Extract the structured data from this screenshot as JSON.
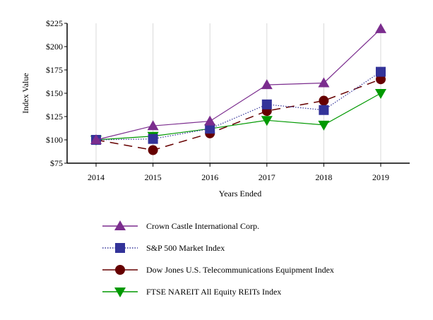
{
  "chart_data": {
    "type": "line",
    "xlabel": "Years Ended",
    "ylabel": "Index Value",
    "categories": [
      "2014",
      "2015",
      "2016",
      "2017",
      "2018",
      "2019"
    ],
    "ylim": [
      75,
      225
    ],
    "yticks": [
      "$75",
      "$100",
      "$125",
      "$150",
      "$175",
      "$200",
      "$225"
    ],
    "grid": "vertical",
    "legend_position": "bottom",
    "series": [
      {
        "name": "Crown Castle International Corp.",
        "values": [
          100,
          115,
          120,
          159,
          161,
          219
        ],
        "color": "#7b2d8e",
        "marker": "triangle-up",
        "line": "solid"
      },
      {
        "name": "S&P 500 Market Index",
        "values": [
          100,
          101,
          112,
          138,
          132,
          173
        ],
        "color": "#333399",
        "marker": "square",
        "line": "dotted"
      },
      {
        "name": "Dow Jones U.S. Telecommunications Equipment Index",
        "values": [
          100,
          89,
          107,
          131,
          142,
          165
        ],
        "color": "#660000",
        "marker": "circle",
        "line": "dashed"
      },
      {
        "name": "FTSE NAREIT All Equity REITs Index",
        "values": [
          100,
          104,
          112,
          121,
          116,
          150
        ],
        "color": "#009900",
        "marker": "triangle-down",
        "line": "solid"
      }
    ]
  }
}
